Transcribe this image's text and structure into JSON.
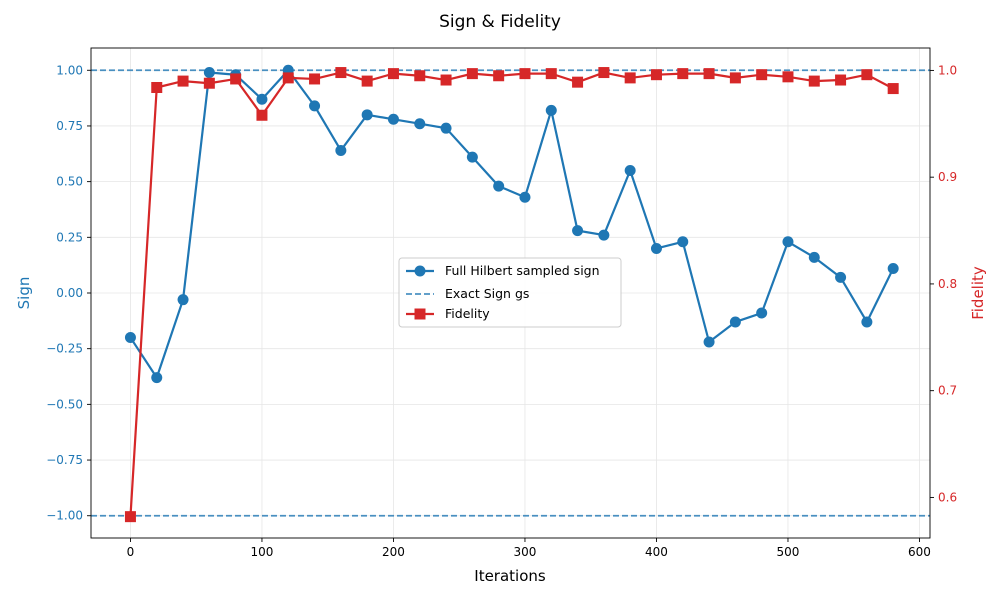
{
  "chart_data": {
    "type": "line",
    "title": "Sign & Fidelity",
    "xlabel": "Iterations",
    "ylabel_left": "Sign",
    "ylabel_right": "Fidelity",
    "xlim": [
      -30,
      608
    ],
    "ylim_left": [
      -1.1,
      1.1
    ],
    "ylim_right": [
      0.562,
      1.021
    ],
    "xticks": [
      0,
      100,
      200,
      300,
      400,
      500,
      600
    ],
    "yticks_left": [
      -1.0,
      -0.75,
      -0.5,
      -0.25,
      0.0,
      0.25,
      0.5,
      0.75,
      1.0
    ],
    "ytick_labels_left": [
      "−1.00",
      "−0.75",
      "−0.50",
      "−0.25",
      "0.00",
      "0.25",
      "0.50",
      "0.75",
      "1.00"
    ],
    "yticks_right": [
      0.6,
      0.7,
      0.8,
      0.9,
      1.0
    ],
    "ytick_labels_right": [
      "0.6",
      "0.7",
      "0.8",
      "0.9",
      "1.0"
    ],
    "grid": true,
    "legend_position": "center-right",
    "colors": {
      "sign": "#1f77b4",
      "fidelity": "#d62728"
    },
    "x": [
      0,
      20,
      40,
      60,
      80,
      100,
      120,
      140,
      160,
      180,
      200,
      220,
      240,
      260,
      280,
      300,
      320,
      340,
      360,
      380,
      400,
      420,
      440,
      460,
      480,
      500,
      520,
      540,
      560,
      580
    ],
    "series": [
      {
        "name": "Full Hilbert sampled sign",
        "axis": "left",
        "marker": "circle",
        "values": [
          -0.2,
          -0.38,
          -0.03,
          0.99,
          0.98,
          0.87,
          1.0,
          0.84,
          0.64,
          0.8,
          0.78,
          0.76,
          0.74,
          0.61,
          0.48,
          0.43,
          0.82,
          0.28,
          0.26,
          0.55,
          0.2,
          0.23,
          -0.22,
          -0.13,
          -0.09,
          0.23,
          0.16,
          0.07,
          -0.13,
          0.11
        ]
      },
      {
        "name": "Exact Sign gs",
        "axis": "left",
        "style": "dashed",
        "hlines": [
          1.0,
          -1.0
        ]
      },
      {
        "name": "Fidelity",
        "axis": "right",
        "marker": "square",
        "values": [
          0.582,
          0.984,
          0.99,
          0.988,
          0.992,
          0.958,
          0.993,
          0.992,
          0.998,
          0.99,
          0.997,
          0.995,
          0.991,
          0.997,
          0.995,
          0.997,
          0.997,
          0.989,
          0.998,
          0.993,
          0.996,
          0.997,
          0.997,
          0.993,
          0.996,
          0.994,
          0.99,
          0.991,
          0.996,
          0.983
        ]
      }
    ]
  }
}
